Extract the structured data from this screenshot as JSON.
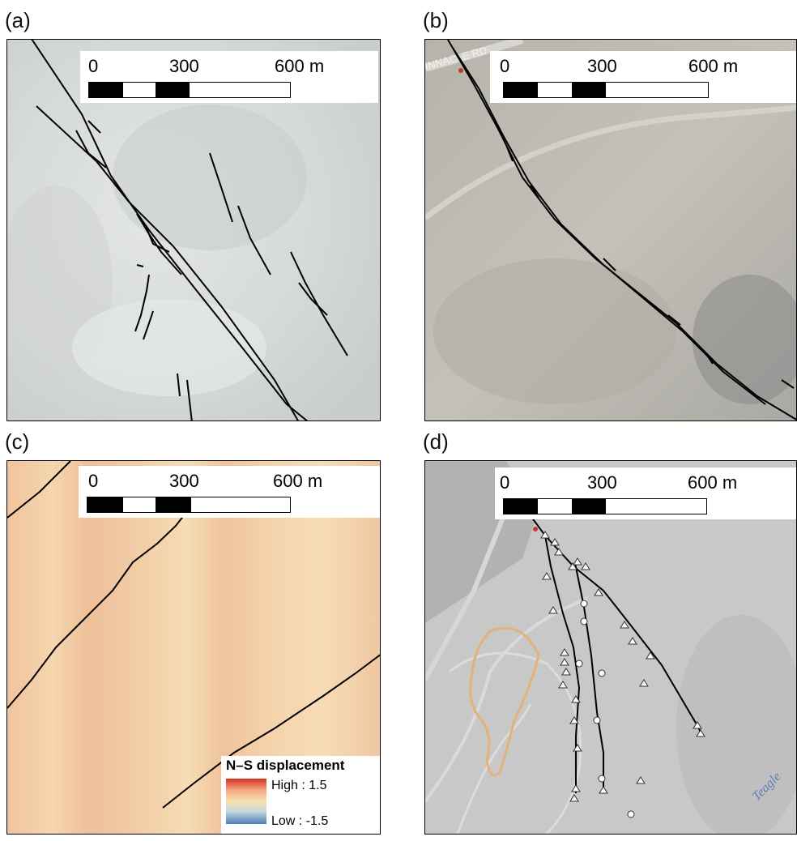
{
  "panels": [
    {
      "label": "(a)",
      "scale": {
        "ticks": [
          "0",
          "300",
          "600 m"
        ]
      }
    },
    {
      "label": "(b)",
      "scale": {
        "ticks": [
          "0",
          "300",
          "600 m"
        ]
      },
      "road_label": "PINNACLE RD"
    },
    {
      "label": "(c)",
      "scale": {
        "ticks": [
          "0",
          "300",
          "600 m"
        ]
      },
      "legend": {
        "title": "N–S displacement",
        "high": "High : 1.5",
        "low": "Low : -1.5"
      }
    },
    {
      "label": "(d)",
      "scale": {
        "ticks": [
          "0",
          "300",
          "600 m"
        ]
      },
      "road_label": "Teagle"
    }
  ],
  "colors": {
    "fault_line": "#000000",
    "imagery_a": "#d9dcdc",
    "imagery_b": "#bdbab2",
    "displacement_field": "#f0c9a0",
    "imagery_d": "#c7c8c7",
    "orange_contour": "#e3b27a",
    "legend_high": "#d7301f",
    "legend_low": "#4a7fb5"
  },
  "icons": [
    "triangle-marker-icon",
    "circle-marker-icon"
  ]
}
